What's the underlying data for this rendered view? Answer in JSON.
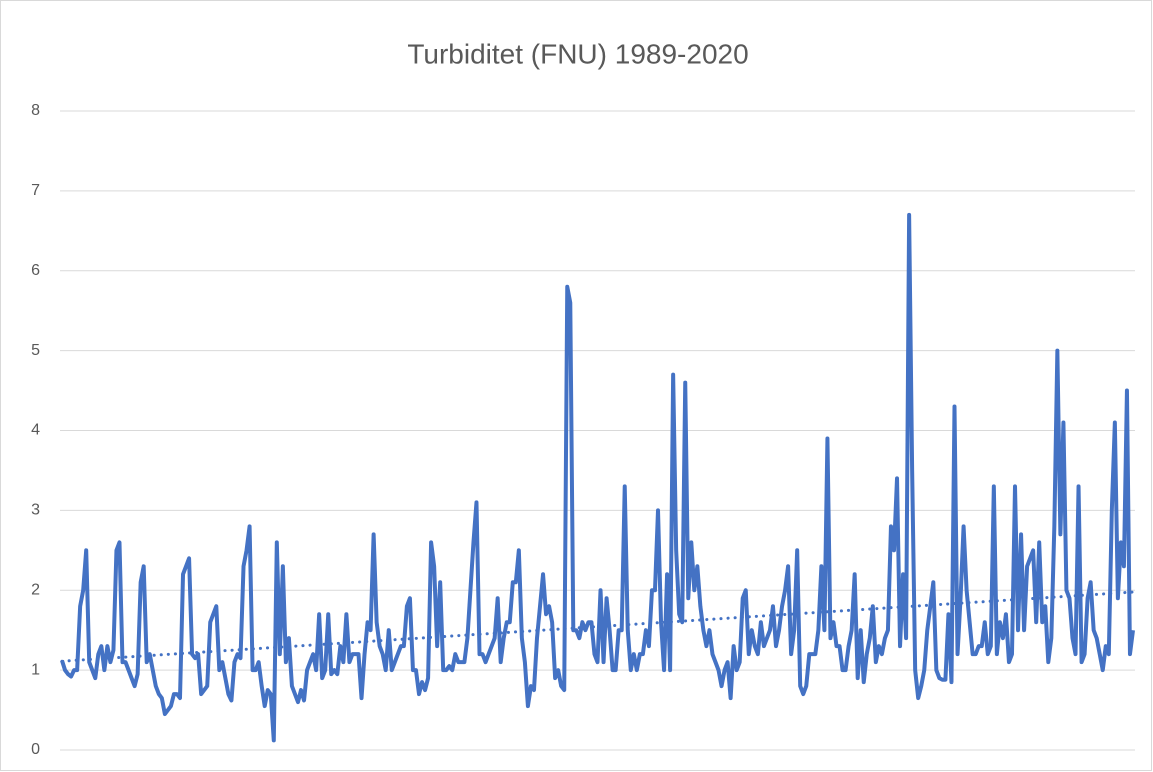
{
  "chart_data": {
    "type": "line",
    "title": "Turbiditet (FNU) 1989-2020",
    "series": [
      {
        "color": "#4472c4",
        "values": [
          1.12,
          1.0,
          0.95,
          0.92,
          1.0,
          1.0,
          1.8,
          2.0,
          2.5,
          1.1,
          1.0,
          0.9,
          1.2,
          1.3,
          1.0,
          1.3,
          1.1,
          1.25,
          2.5,
          2.6,
          1.1,
          1.1,
          1.0,
          0.9,
          0.8,
          0.95,
          2.1,
          2.3,
          1.1,
          1.2,
          1.0,
          0.8,
          0.7,
          0.65,
          0.45,
          0.5,
          0.55,
          0.7,
          0.7,
          0.65,
          2.2,
          2.3,
          2.4,
          1.2,
          1.15,
          1.2,
          0.7,
          0.75,
          0.8,
          1.6,
          1.7,
          1.8,
          1.0,
          1.1,
          0.9,
          0.7,
          0.62,
          1.1,
          1.2,
          1.15,
          2.3,
          2.5,
          2.8,
          1.0,
          1.0,
          1.1,
          0.8,
          0.55,
          0.75,
          0.7,
          0.12,
          2.6,
          1.2,
          2.3,
          1.1,
          1.4,
          0.8,
          0.7,
          0.6,
          0.75,
          0.62,
          1.0,
          1.1,
          1.2,
          1.0,
          1.7,
          0.9,
          1.0,
          1.7,
          0.95,
          1.0,
          0.95,
          1.3,
          1.1,
          1.7,
          1.1,
          1.2,
          1.2,
          1.2,
          0.65,
          1.2,
          1.6,
          1.5,
          2.7,
          1.6,
          1.3,
          1.2,
          1.0,
          1.5,
          1.0,
          1.1,
          1.2,
          1.3,
          1.3,
          1.8,
          1.9,
          1.0,
          1.0,
          0.7,
          0.85,
          0.75,
          0.9,
          2.6,
          2.3,
          1.3,
          2.1,
          1.0,
          1.0,
          1.05,
          1.0,
          1.2,
          1.1,
          1.1,
          1.1,
          1.4,
          2.0,
          2.6,
          3.1,
          1.2,
          1.2,
          1.1,
          1.2,
          1.3,
          1.4,
          1.9,
          1.1,
          1.4,
          1.6,
          1.6,
          2.1,
          2.1,
          2.5,
          1.4,
          1.1,
          0.55,
          0.8,
          0.75,
          1.4,
          1.8,
          2.2,
          1.7,
          1.8,
          1.6,
          0.9,
          1.0,
          0.8,
          0.75,
          5.8,
          5.6,
          1.5,
          1.5,
          1.4,
          1.6,
          1.5,
          1.6,
          1.6,
          1.2,
          1.1,
          2.0,
          1.1,
          1.9,
          1.5,
          1.0,
          1.0,
          1.5,
          1.5,
          3.3,
          1.5,
          1.0,
          1.2,
          1.0,
          1.2,
          1.2,
          1.5,
          1.3,
          2.0,
          2.0,
          3.0,
          1.6,
          1.0,
          2.2,
          1.0,
          4.7,
          2.5,
          1.7,
          1.6,
          4.6,
          1.9,
          2.6,
          2.0,
          2.3,
          1.8,
          1.5,
          1.3,
          1.5,
          1.2,
          1.1,
          1.0,
          0.8,
          1.0,
          1.1,
          0.65,
          1.3,
          1.0,
          1.1,
          1.9,
          2.0,
          1.2,
          1.5,
          1.3,
          1.2,
          1.6,
          1.3,
          1.4,
          1.5,
          1.8,
          1.3,
          1.5,
          1.8,
          2.0,
          2.3,
          1.2,
          1.5,
          2.5,
          0.8,
          0.7,
          0.8,
          1.2,
          1.2,
          1.2,
          1.5,
          2.3,
          1.5,
          3.9,
          1.4,
          1.6,
          1.3,
          1.3,
          1.0,
          1.0,
          1.3,
          1.5,
          2.2,
          0.9,
          1.5,
          0.85,
          1.2,
          1.4,
          1.8,
          1.1,
          1.3,
          1.2,
          1.4,
          1.5,
          2.8,
          2.5,
          3.4,
          1.3,
          2.2,
          1.4,
          6.7,
          3.5,
          1.0,
          0.65,
          0.8,
          1.0,
          1.5,
          1.8,
          2.1,
          1.0,
          0.9,
          0.88,
          0.88,
          1.7,
          0.85,
          4.3,
          1.2,
          1.9,
          2.8,
          2.0,
          1.6,
          1.2,
          1.2,
          1.3,
          1.3,
          1.6,
          1.2,
          1.3,
          3.3,
          1.2,
          1.6,
          1.4,
          1.7,
          1.1,
          1.2,
          3.3,
          1.5,
          2.7,
          1.5,
          2.3,
          2.4,
          2.5,
          1.6,
          2.6,
          1.6,
          1.8,
          1.1,
          1.4,
          2.8,
          5.0,
          2.7,
          4.1,
          2.0,
          1.9,
          1.4,
          1.2,
          3.3,
          1.1,
          1.2,
          1.9,
          2.1,
          1.5,
          1.4,
          1.2,
          1.0,
          1.3,
          1.2,
          3.0,
          4.1,
          1.9,
          2.6,
          2.3,
          4.5,
          1.2,
          1.5
        ]
      }
    ],
    "trendline": "linear",
    "ylim": [
      0,
      8
    ],
    "yticks": [
      0,
      1,
      2,
      3,
      4,
      5,
      6,
      7,
      8
    ],
    "grid": true
  }
}
